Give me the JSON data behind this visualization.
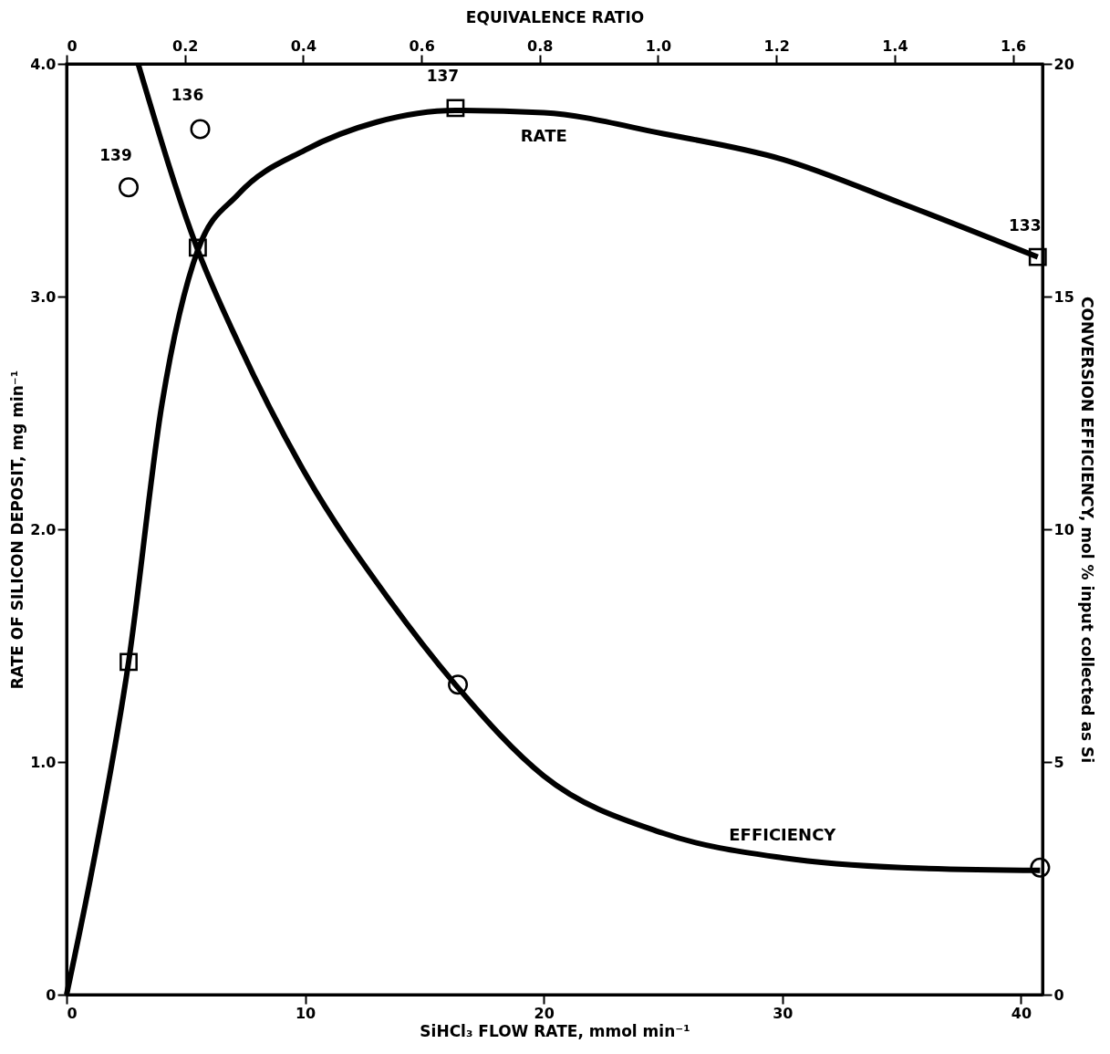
{
  "chart_data": {
    "type": "line",
    "xlabel": "SiHCl₃  FLOW RATE,  mmol  min⁻¹",
    "ylabel": "RATE  OF  SILICON  DEPOSIT,  mg  min⁻¹",
    "y2label": "CONVERSION  EFFICIENCY,  mol %  input  collected  as  Si",
    "x2label": "EQUIVALENCE  RATIO",
    "xlim": [
      0,
      40.9
    ],
    "xticks": [
      0,
      10,
      20,
      30,
      40
    ],
    "ylim": [
      0,
      4
    ],
    "yticks": [
      0,
      {
        "value": 1,
        "label": "1.0"
      },
      {
        "value": 2,
        "label": "2.0"
      },
      {
        "value": 3,
        "label": "3.0"
      },
      {
        "value": 4,
        "label": "4.0"
      }
    ],
    "y2lim": [
      0,
      20
    ],
    "y2ticks": [
      0,
      5,
      10,
      15,
      20
    ],
    "x2lim": [
      0,
      1.65
    ],
    "x2ticks": [
      {
        "value": 0,
        "label": "0"
      },
      0.2,
      0.4,
      0.6,
      0.8,
      {
        "value": 1,
        "label": "1.0"
      },
      1.2,
      1.4,
      1.6
    ],
    "grid": false,
    "series": [
      {
        "name": "RATE",
        "color": "#000000",
        "marker": "none",
        "x": [
          0,
          1,
          2.6,
          4,
          5.5,
          7.2,
          10,
          13,
          16.3,
          20,
          25,
          30,
          35,
          40.7
        ],
        "values": [
          0,
          0.5,
          1.43,
          2.54,
          3.2,
          3.44,
          3.63,
          3.75,
          3.8,
          3.79,
          3.7,
          3.59,
          3.4,
          3.17
        ]
      },
      {
        "type": "scatter",
        "color": "#000000",
        "marker": "square",
        "x": [
          2.6,
          5.5,
          16.3,
          40.7
        ],
        "values": [
          1.43,
          3.21,
          3.81,
          3.17
        ]
      },
      {
        "name": "EFFICIENCY",
        "axis": "y2",
        "color": "#000000",
        "marker": "none",
        "x": [
          3.0,
          5.5,
          7.2,
          10,
          13.5,
          16.3,
          20,
          25,
          30,
          35,
          40.8
        ],
        "values": [
          20,
          16.0,
          14.0,
          11.2,
          8.5,
          6.66,
          4.7,
          3.47,
          2.94,
          2.73,
          2.67
        ]
      },
      {
        "type": "scatter",
        "axis": "y2",
        "color": "#000000",
        "marker": "circle",
        "x": [
          2.6,
          5.6,
          16.4,
          40.8
        ],
        "values": [
          17.35,
          18.6,
          6.66,
          2.73
        ]
      }
    ],
    "annotations": [
      {
        "text": "139",
        "x": 2.6,
        "y": 3.47
      },
      {
        "text": "136",
        "x": 5.6,
        "y": 3.73
      },
      {
        "text": "137",
        "x": 16.3,
        "y": 3.81
      },
      {
        "text": "133",
        "x": 40.7,
        "y": 3.17
      }
    ]
  }
}
